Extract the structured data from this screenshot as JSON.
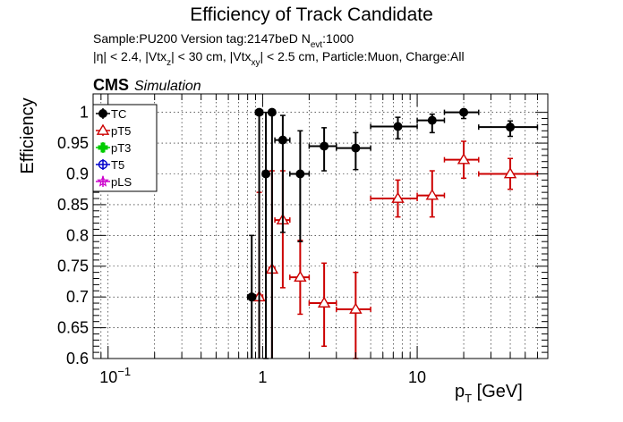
{
  "header": {
    "title": "Efficiency of Track Candidate",
    "line1_sample": "Sample:PU200   Version tag:2147beD  N",
    "line1_nsub": "evt",
    "line1_tail": ":1000",
    "line2_a": "|η| < 2.4, |Vtx",
    "line2_sub1": "z",
    "line2_b": "| < 30 cm, |Vtx",
    "line2_sub2": "xy",
    "line2_c": "| < 2.5 cm, Particle:Muon, Charge:All",
    "cms": "CMS",
    "simulation": "Simulation"
  },
  "axes": {
    "ylabel": "Efficiency",
    "xlabel_main": "p",
    "xlabel_sub": "T",
    "xlabel_unit": " [GeV]",
    "x_ticks": [
      {
        "value": 0.1,
        "base": "10",
        "exp": "−1"
      },
      {
        "value": 1,
        "base": "1",
        "exp": ""
      },
      {
        "value": 10,
        "base": "10",
        "exp": ""
      }
    ]
  },
  "chart_data": {
    "type": "scatter",
    "title": "Efficiency of Track Candidate",
    "xlabel": "p_T [GeV]",
    "ylabel": "Efficiency",
    "xscale": "log",
    "xlim": [
      0.08,
      70
    ],
    "ylim": [
      0.6,
      1.03
    ],
    "y_ticks": [
      0.6,
      0.65,
      0.7,
      0.75,
      0.8,
      0.85,
      0.9,
      0.95,
      1
    ],
    "grid": true,
    "legend_position": "top-left",
    "series": [
      {
        "name": "TC",
        "color": "#000000",
        "marker": "filled-circle",
        "points": [
          {
            "x": 0.85,
            "xlo": 0.8,
            "xhi": 0.9,
            "y": 0.7,
            "elo": 0.1,
            "ehi": 0.1
          },
          {
            "x": 0.95,
            "xlo": 0.9,
            "xhi": 1.0,
            "y": 1.0,
            "elo": 0.6,
            "ehi": 0.0
          },
          {
            "x": 1.05,
            "xlo": 1.0,
            "xhi": 1.1,
            "y": 0.9,
            "elo": 0.3,
            "ehi": 0.1
          },
          {
            "x": 1.15,
            "xlo": 1.1,
            "xhi": 1.2,
            "y": 1.0,
            "elo": 0.4,
            "ehi": 0.0
          },
          {
            "x": 1.35,
            "xlo": 1.2,
            "xhi": 1.5,
            "y": 0.955,
            "elo": 0.15,
            "ehi": 0.04
          },
          {
            "x": 1.75,
            "xlo": 1.5,
            "xhi": 2.0,
            "y": 0.9,
            "elo": 0.11,
            "ehi": 0.07
          },
          {
            "x": 2.5,
            "xlo": 2.0,
            "xhi": 3.0,
            "y": 0.945,
            "elo": 0.04,
            "ehi": 0.03
          },
          {
            "x": 4.0,
            "xlo": 3.0,
            "xhi": 5.0,
            "y": 0.942,
            "elo": 0.035,
            "ehi": 0.025
          },
          {
            "x": 7.5,
            "xlo": 5.0,
            "xhi": 10.0,
            "y": 0.977,
            "elo": 0.02,
            "ehi": 0.015
          },
          {
            "x": 12.5,
            "xlo": 10.0,
            "xhi": 15.0,
            "y": 0.987,
            "elo": 0.02,
            "ehi": 0.01
          },
          {
            "x": 20.0,
            "xlo": 15.0,
            "xhi": 25.0,
            "y": 1.0,
            "elo": 0.01,
            "ehi": 0.0
          },
          {
            "x": 40.0,
            "xlo": 25.0,
            "xhi": 60.0,
            "y": 0.976,
            "elo": 0.015,
            "ehi": 0.01
          }
        ]
      },
      {
        "name": "pT5",
        "color": "#cc0000",
        "marker": "open-triangle",
        "points": [
          {
            "x": 0.95,
            "xlo": 0.9,
            "xhi": 1.0,
            "y": 0.7,
            "elo": 0.17,
            "ehi": 0.17
          },
          {
            "x": 1.15,
            "xlo": 1.1,
            "xhi": 1.2,
            "y": 0.745,
            "elo": 0.16,
            "ehi": 0.16
          },
          {
            "x": 1.35,
            "xlo": 1.2,
            "xhi": 1.5,
            "y": 0.825,
            "elo": 0.11,
            "ehi": 0.08
          },
          {
            "x": 1.75,
            "xlo": 1.5,
            "xhi": 2.0,
            "y": 0.732,
            "elo": 0.06,
            "ehi": 0.06
          },
          {
            "x": 2.5,
            "xlo": 2.0,
            "xhi": 3.0,
            "y": 0.69,
            "elo": 0.07,
            "ehi": 0.065
          },
          {
            "x": 4.0,
            "xlo": 3.0,
            "xhi": 5.0,
            "y": 0.68,
            "elo": 0.08,
            "ehi": 0.06
          },
          {
            "x": 7.5,
            "xlo": 5.0,
            "xhi": 10.0,
            "y": 0.86,
            "elo": 0.03,
            "ehi": 0.03
          },
          {
            "x": 12.5,
            "xlo": 10.0,
            "xhi": 15.0,
            "y": 0.865,
            "elo": 0.035,
            "ehi": 0.04
          },
          {
            "x": 20.0,
            "xlo": 15.0,
            "xhi": 25.0,
            "y": 0.923,
            "elo": 0.03,
            "ehi": 0.03
          },
          {
            "x": 40.0,
            "xlo": 25.0,
            "xhi": 60.0,
            "y": 0.9,
            "elo": 0.025,
            "ehi": 0.025
          }
        ]
      },
      {
        "name": "pT3",
        "color": "#00cc00",
        "marker": "open-cross",
        "points": []
      },
      {
        "name": "T5",
        "color": "#0000cc",
        "marker": "open-circle",
        "points": []
      },
      {
        "name": "pLS",
        "color": "#cc00cc",
        "marker": "open-star",
        "points": []
      }
    ]
  }
}
